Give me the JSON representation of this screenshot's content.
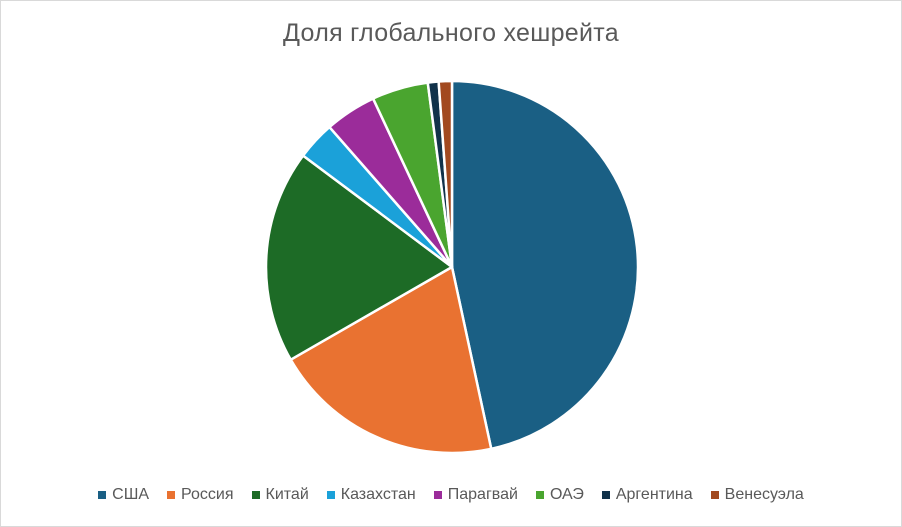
{
  "chart_data": {
    "type": "pie",
    "title": "Доля глобального хешрейта",
    "categories": [
      "США",
      "Россия",
      "Китай",
      "Казахстан",
      "Парагвай",
      "ОАЭ",
      "Аргентина",
      "Венесуэла"
    ],
    "values": [
      44.8,
      19.3,
      17.8,
      3.2,
      4.3,
      4.7,
      0.9,
      1.1
    ],
    "unit": "%",
    "colors": [
      "#1a5f84",
      "#e97231",
      "#1d6b26",
      "#1ba1d9",
      "#9b2c9a",
      "#4aa52f",
      "#11324a",
      "#a2491f"
    ],
    "legend": "bottom"
  }
}
